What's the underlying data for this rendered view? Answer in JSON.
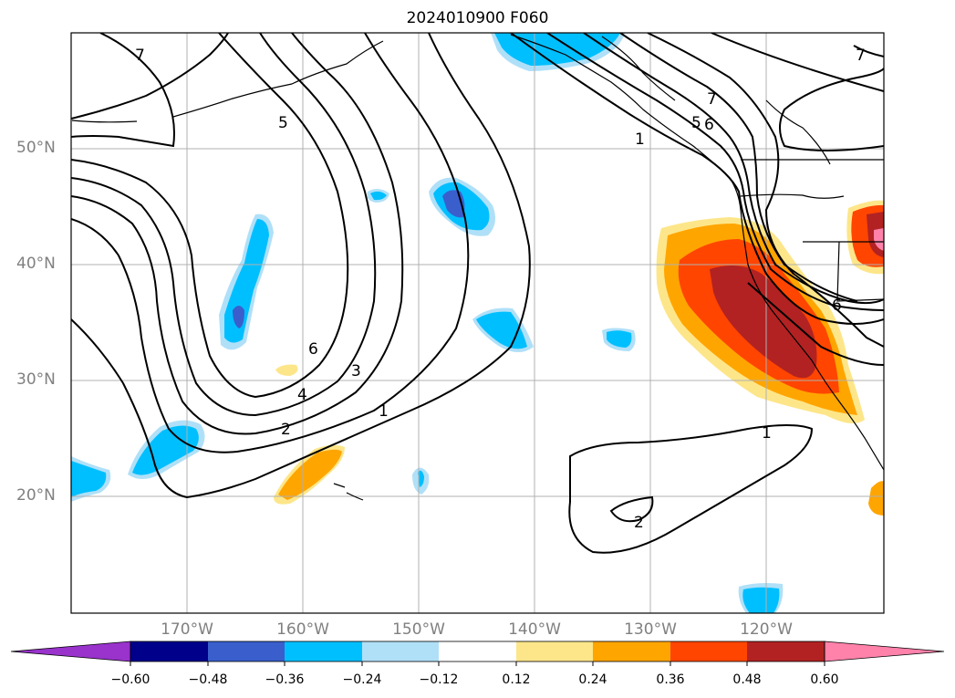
{
  "title": "2024010900 F060",
  "lat_labels": [
    "50°N",
    "40°N",
    "30°N",
    "20°N"
  ],
  "lon_labels": [
    "170°W",
    "160°W",
    "150°W",
    "140°W",
    "130°W",
    "120°W"
  ],
  "contour_labels": [
    "7",
    "5",
    "7",
    "6",
    "5",
    "1",
    "6",
    "4",
    "3",
    "2",
    "1",
    "1",
    "2",
    "6",
    "7"
  ],
  "colorbar": {
    "ticks": [
      "−0.60",
      "−0.48",
      "−0.36",
      "−0.24",
      "−0.12",
      "0.12",
      "0.24",
      "0.36",
      "0.48",
      "0.60"
    ],
    "colors": [
      "#9933cc",
      "#00008b",
      "#3a5fcd",
      "#00bfff",
      "#b0e0f8",
      "#ffffff",
      "#fde68a",
      "#ffa500",
      "#ff4500",
      "#b22222",
      "#ff82ab"
    ]
  },
  "colors": {
    "negative_light": "#b0e0f8",
    "negative_mid": "#00bfff",
    "negative_strong": "#3a5fcd",
    "positive_light": "#fde68a",
    "positive_mid": "#ffa500",
    "positive_strong": "#ff4500",
    "positive_max": "#b22222",
    "positive_extreme": "#ff82ab"
  }
}
